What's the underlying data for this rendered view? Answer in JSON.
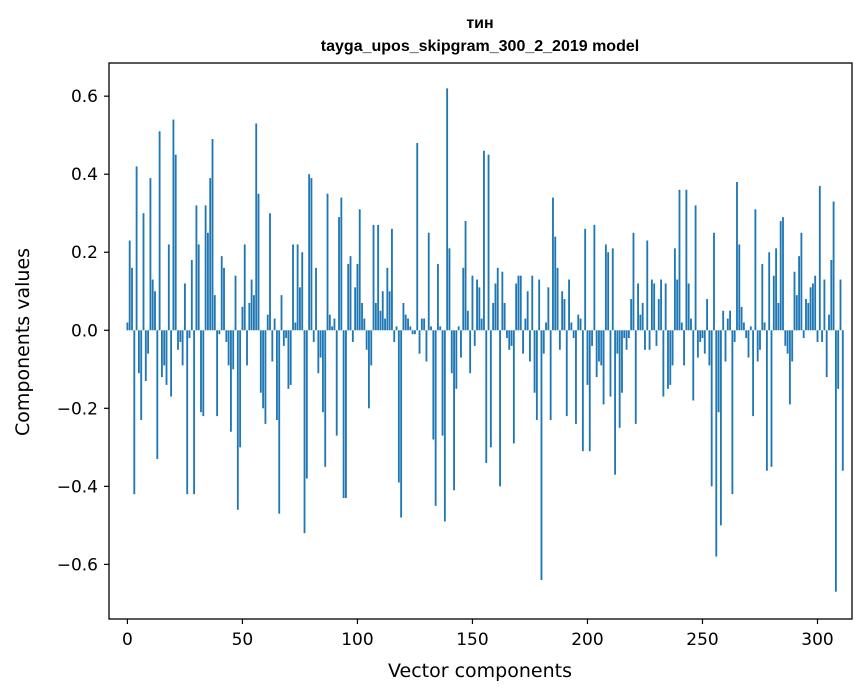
{
  "chart_data": {
    "type": "bar",
    "title": "тин",
    "subtitle": "tayga_upos_skipgram_300_2_2019 model",
    "xlabel": "Vector components",
    "ylabel": "Components values",
    "xlim": [
      -8,
      315
    ],
    "ylim": [
      -0.74,
      0.685
    ],
    "xticks": [
      0,
      50,
      100,
      150,
      200,
      250,
      300
    ],
    "yticks": [
      -0.6,
      -0.4,
      -0.2,
      0.0,
      0.2,
      0.4,
      0.6
    ],
    "xtick_labels": [
      "0",
      "50",
      "100",
      "150",
      "200",
      "250",
      "300"
    ],
    "ytick_labels": [
      "−0.6",
      "−0.4",
      "−0.2",
      "0.0",
      "0.2",
      "0.4",
      "0.6"
    ],
    "color": "#1f77b4",
    "values": [
      0.02,
      0.23,
      0.16,
      -0.42,
      0.42,
      -0.11,
      -0.23,
      0.3,
      -0.13,
      -0.06,
      0.39,
      0.13,
      0.1,
      -0.33,
      0.51,
      -0.12,
      -0.09,
      -0.14,
      0.22,
      -0.17,
      0.54,
      0.45,
      -0.05,
      -0.03,
      -0.09,
      0.12,
      -0.42,
      -0.02,
      0.18,
      -0.42,
      0.32,
      0.22,
      -0.21,
      -0.22,
      0.32,
      0.25,
      0.39,
      0.49,
      0.09,
      -0.22,
      -0.01,
      0.19,
      0.16,
      -0.03,
      -0.09,
      -0.26,
      -0.1,
      0.14,
      -0.46,
      -0.3,
      0.06,
      0.22,
      -0.09,
      0.07,
      0.13,
      0.09,
      0.53,
      0.35,
      -0.16,
      -0.2,
      -0.24,
      0.04,
      0.3,
      -0.08,
      0.03,
      -0.23,
      -0.47,
      0.09,
      -0.04,
      -0.02,
      -0.15,
      -0.14,
      0.22,
      0.02,
      0.22,
      0.11,
      0.2,
      -0.52,
      -0.38,
      0.4,
      0.39,
      -0.03,
      0.16,
      -0.11,
      -0.07,
      -0.21,
      -0.35,
      0.35,
      0.04,
      0.01,
      0.03,
      -0.27,
      0.29,
      0.34,
      -0.43,
      -0.43,
      0.17,
      0.19,
      -0.03,
      0.11,
      0.17,
      0.31,
      0.07,
      0.03,
      -0.05,
      -0.2,
      -0.09,
      0.27,
      0.07,
      0.27,
      0.05,
      0.1,
      0.03,
      0.16,
      0.1,
      0.26,
      -0.03,
      0.01,
      -0.39,
      -0.48,
      0.07,
      0.04,
      0.03,
      0.01,
      -0.01,
      -0.01,
      0.48,
      -0.06,
      0.03,
      0.03,
      -0.08,
      0.25,
      0.01,
      -0.28,
      -0.45,
      0.17,
      0.01,
      -0.27,
      -0.49,
      0.62,
      0.21,
      -0.11,
      -0.41,
      -0.15,
      0.01,
      -0.07,
      0.16,
      0.28,
      0.05,
      -0.11,
      0.14,
      -0.04,
      0.13,
      0.11,
      0.03,
      0.46,
      -0.34,
      0.45,
      -0.3,
      0.07,
      0.12,
      0.16,
      -0.4,
      0.15,
      0.07,
      -0.02,
      -0.05,
      -0.04,
      -0.29,
      0.12,
      0.14,
      0.14,
      -0.06,
      0.03,
      0.1,
      -0.08,
      0.14,
      -0.16,
      -0.23,
      0.13,
      -0.64,
      -0.06,
      0.02,
      0.11,
      -0.23,
      0.34,
      0.24,
      0.16,
      -0.05,
      0.1,
      0.08,
      -0.22,
      0.13,
      0.02,
      -0.02,
      -0.24,
      0.04,
      0.03,
      -0.31,
      0.26,
      -0.14,
      -0.31,
      -0.04,
      0.27,
      -0.12,
      -0.08,
      -0.09,
      -0.19,
      0.22,
      0.2,
      -0.17,
      0.21,
      -0.37,
      -0.06,
      -0.25,
      -0.16,
      -0.02,
      -0.05,
      -0.02,
      0.08,
      0.25,
      -0.24,
      0.12,
      0.04,
      0.07,
      -0.05,
      0.23,
      -0.05,
      0.13,
      0.12,
      -0.04,
      0.08,
      0.13,
      -0.17,
      0.12,
      -0.15,
      -0.14,
      -0.09,
      0.21,
      0.13,
      0.36,
      0.02,
      -0.09,
      0.36,
      0.12,
      0.03,
      -0.18,
      0.32,
      -0.07,
      -0.03,
      -0.02,
      -0.06,
      0.08,
      -0.09,
      -0.4,
      0.25,
      -0.58,
      -0.21,
      -0.5,
      0.05,
      -0.08,
      0.03,
      0.05,
      -0.42,
      -0.03,
      0.38,
      0.22,
      0.06,
      0.02,
      -0.02,
      -0.07,
      0.01,
      -0.22,
      0.31,
      -0.08,
      -0.05,
      0.17,
      0.02,
      -0.36,
      0.2,
      -0.35,
      0.14,
      0.21,
      0.07,
      0.28,
      0.29,
      -0.04,
      -0.06,
      -0.19,
      -0.08,
      0.15,
      0.09,
      0.19,
      0.25,
      -0.02,
      0.08,
      0.07,
      0.11,
      0.12,
      0.14,
      -0.03,
      0.37,
      -0.03,
      0.13,
      -0.12,
      0.04,
      0.18,
      0.33,
      -0.67,
      -0.15,
      0.13,
      -0.36
    ]
  }
}
